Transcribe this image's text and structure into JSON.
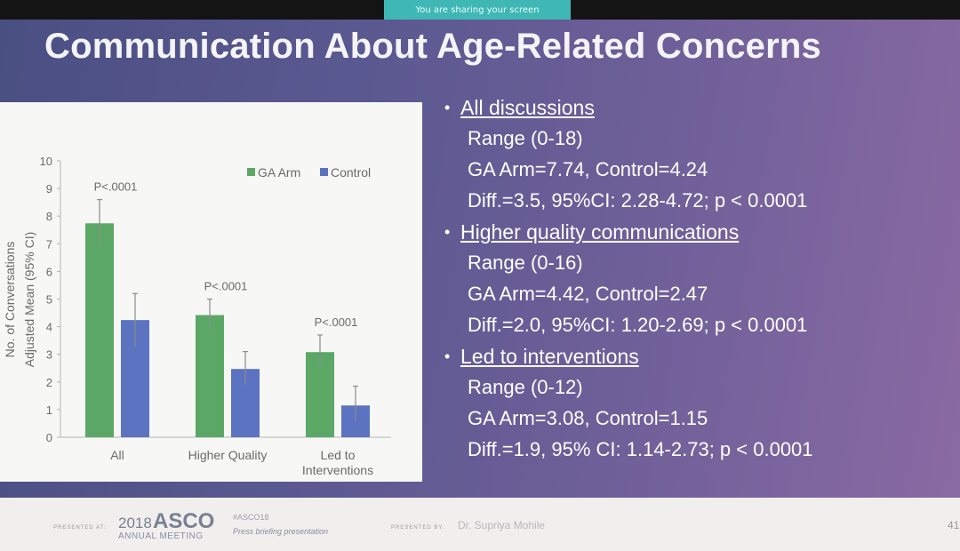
{
  "share_banner": "You are sharing your screen",
  "slide": {
    "title": "Communication About Age-Related Concerns"
  },
  "chart_data": {
    "type": "bar",
    "categories": [
      "All",
      "Higher Quality",
      "Led to Interventions"
    ],
    "category_lines": [
      [
        "All"
      ],
      [
        "Higher Quality"
      ],
      [
        "Led to",
        "Interventions"
      ]
    ],
    "series": [
      {
        "name": "GA Arm",
        "values": [
          7.74,
          4.42,
          3.08
        ],
        "err_hi": [
          8.6,
          5.0,
          3.7
        ],
        "err_lo": [
          6.9,
          3.9,
          2.5
        ],
        "color": "#5ba866"
      },
      {
        "name": "Control",
        "values": [
          4.24,
          2.47,
          1.15
        ],
        "err_hi": [
          5.2,
          3.1,
          1.85
        ],
        "err_lo": [
          3.3,
          1.9,
          0.6
        ],
        "color": "#5b73c0"
      }
    ],
    "annotations": [
      "P<.0001",
      "P<.0001",
      "P<.0001"
    ],
    "ylim": [
      0,
      10
    ],
    "yticks": [
      0,
      1,
      2,
      3,
      4,
      5,
      6,
      7,
      8,
      9,
      10
    ],
    "ylabel_line1": "No. of Conversations",
    "ylabel_line2": "Adjusted Mean (95% CI)",
    "legend_position": "top-right"
  },
  "bullets": [
    {
      "heading": "All discussions",
      "lines": [
        "Range (0-18)",
        "GA Arm=7.74, Control=4.24",
        "Diff.=3.5, 95%CI: 2.28-4.72; p < 0.0001"
      ]
    },
    {
      "heading": "Higher quality communications",
      "lines": [
        "Range (0-16)",
        "GA Arm=4.42, Control=2.47",
        "Diff.=2.0, 95%CI: 1.20-2.69; p < 0.0001"
      ]
    },
    {
      "heading": "Led to interventions",
      "lines": [
        "Range (0-12)",
        "GA Arm=3.08, Control=1.15",
        "Diff.=1.9, 95% CI: 1.14-2.73; p < 0.0001"
      ]
    }
  ],
  "footer": {
    "presented_at": "PRESENTED AT:",
    "year": "2018",
    "asco": "ASCO",
    "meeting": "ANNUAL MEETING",
    "hashtag": "#ASCO18",
    "briefing": "Press briefing presentation",
    "presented_by": "PRESENTED BY:",
    "presenter": "Dr. Supriya Mohile",
    "page": "41"
  }
}
